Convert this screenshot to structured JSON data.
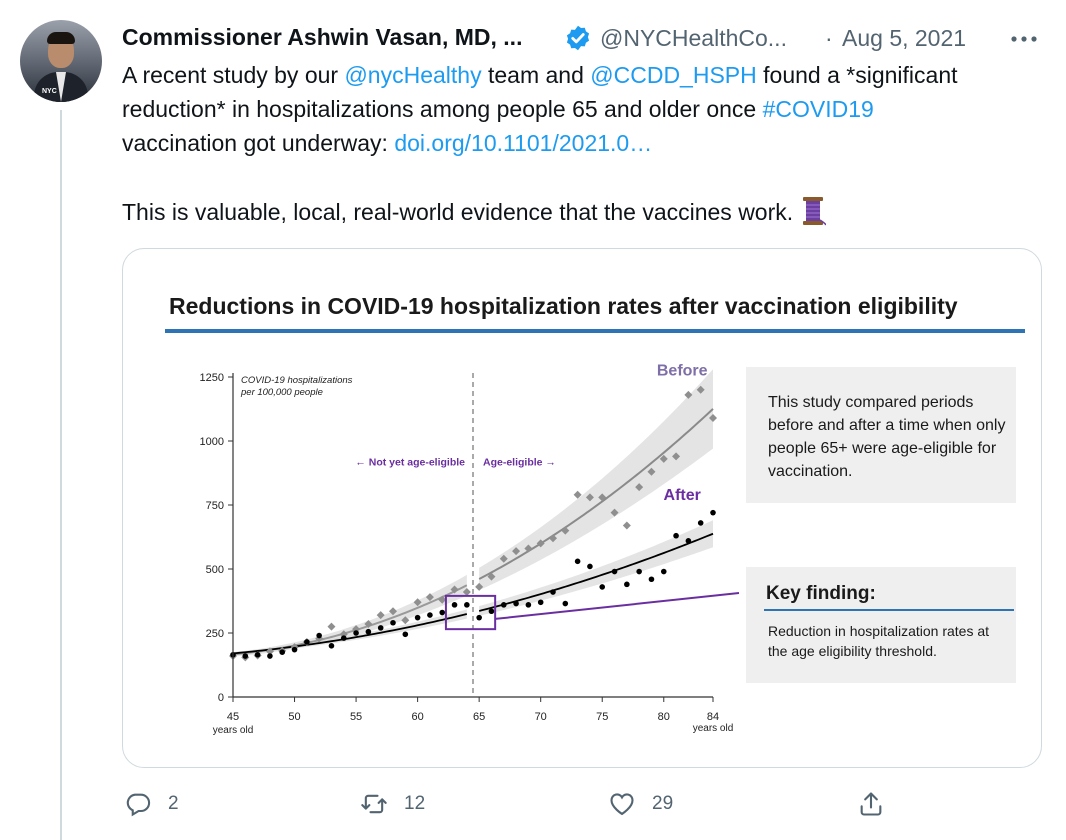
{
  "tweet": {
    "author_name": "Commissioner Ashwin Vasan, MD, ...",
    "handle": "@NYCHealthCo...",
    "separator": "·",
    "timestamp": "Aug 5, 2021",
    "avatar_label": "NYC",
    "lines": {
      "l1_a": "A recent study by our ",
      "l1_b": "@nycHealthy",
      "l1_c": " team and ",
      "l1_d": "@CCDD_HSPH",
      "l1_e": " found a *significant",
      "l2_a": "reduction* in hospitalizations among people 65 and older once ",
      "l2_b": "#COVID19",
      "l3_a": "vaccination got underway: ",
      "l3_b": "doi.org/10.1101/2021.0…",
      "l4_a": "This is valuable, local, real-world evidence that the vaccines work. "
    },
    "icons": {
      "verified": "verified-badge-icon",
      "more": "more-icon",
      "emoji": "thread-emoji-icon"
    }
  },
  "media": {
    "title": "Reductions in COVID-19 hospitalization rates after vaccination eligibility",
    "box_study": "This study compared periods before and after a time when only people 65+ were age-eligible for vaccination.",
    "box_key_title": "Key finding:",
    "box_key_text": "Reduction in hospitalization rates at the age eligibility threshold."
  },
  "chart_data": {
    "type": "scatter",
    "ylabel": "COVID-19 hospitalizations per 100,000 people",
    "x_unit_start": "years old",
    "x_unit_end": "years old",
    "xlim": [
      45,
      84
    ],
    "ylim": [
      0,
      1250
    ],
    "xticks": [
      45,
      50,
      55,
      60,
      65,
      70,
      75,
      80,
      84
    ],
    "yticks": [
      0,
      250,
      500,
      750,
      1000,
      1250
    ],
    "threshold_x": 64.5,
    "region_left_label": "← Not yet age-eligible",
    "region_right_label": "Age-eligible →",
    "series": [
      {
        "name": "Before",
        "color": "#8a8a8a",
        "label_color": "#7e6fa8",
        "points": [
          [
            45,
            160
          ],
          [
            46,
            155
          ],
          [
            47,
            162
          ],
          [
            48,
            178
          ],
          [
            49,
            180
          ],
          [
            50,
            195
          ],
          [
            51,
            215
          ],
          [
            52,
            228
          ],
          [
            53,
            275
          ],
          [
            54,
            245
          ],
          [
            55,
            265
          ],
          [
            56,
            285
          ],
          [
            57,
            320
          ],
          [
            58,
            335
          ],
          [
            59,
            300
          ],
          [
            60,
            370
          ],
          [
            61,
            390
          ],
          [
            62,
            380
          ],
          [
            63,
            420
          ],
          [
            64,
            410
          ],
          [
            65,
            430
          ],
          [
            66,
            470
          ],
          [
            67,
            540
          ],
          [
            68,
            570
          ],
          [
            69,
            580
          ],
          [
            70,
            600
          ],
          [
            71,
            620
          ],
          [
            72,
            650
          ],
          [
            73,
            790
          ],
          [
            74,
            780
          ],
          [
            75,
            780
          ],
          [
            76,
            720
          ],
          [
            77,
            670
          ],
          [
            78,
            820
          ],
          [
            79,
            880
          ],
          [
            80,
            930
          ],
          [
            81,
            940
          ],
          [
            82,
            1180
          ],
          [
            83,
            1200
          ],
          [
            84,
            1090
          ]
        ]
      },
      {
        "name": "After",
        "color": "#000000",
        "label_color": "#6a2ea0",
        "points": [
          [
            45,
            165
          ],
          [
            46,
            160
          ],
          [
            47,
            165
          ],
          [
            48,
            160
          ],
          [
            49,
            175
          ],
          [
            50,
            185
          ],
          [
            51,
            215
          ],
          [
            52,
            240
          ],
          [
            53,
            200
          ],
          [
            54,
            230
          ],
          [
            55,
            250
          ],
          [
            56,
            255
          ],
          [
            57,
            270
          ],
          [
            58,
            290
          ],
          [
            59,
            245
          ],
          [
            60,
            310
          ],
          [
            61,
            320
          ],
          [
            62,
            330
          ],
          [
            63,
            360
          ],
          [
            64,
            360
          ],
          [
            65,
            310
          ],
          [
            66,
            335
          ],
          [
            67,
            360
          ],
          [
            68,
            365
          ],
          [
            69,
            360
          ],
          [
            70,
            370
          ],
          [
            71,
            410
          ],
          [
            72,
            365
          ],
          [
            73,
            530
          ],
          [
            74,
            510
          ],
          [
            75,
            430
          ],
          [
            76,
            490
          ],
          [
            77,
            440
          ],
          [
            78,
            490
          ],
          [
            79,
            460
          ],
          [
            80,
            490
          ],
          [
            81,
            630
          ],
          [
            82,
            610
          ],
          [
            83,
            680
          ],
          [
            84,
            720
          ]
        ]
      }
    ]
  },
  "actions": {
    "reply_count": "2",
    "retweet_count": "12",
    "like_count": "29"
  }
}
